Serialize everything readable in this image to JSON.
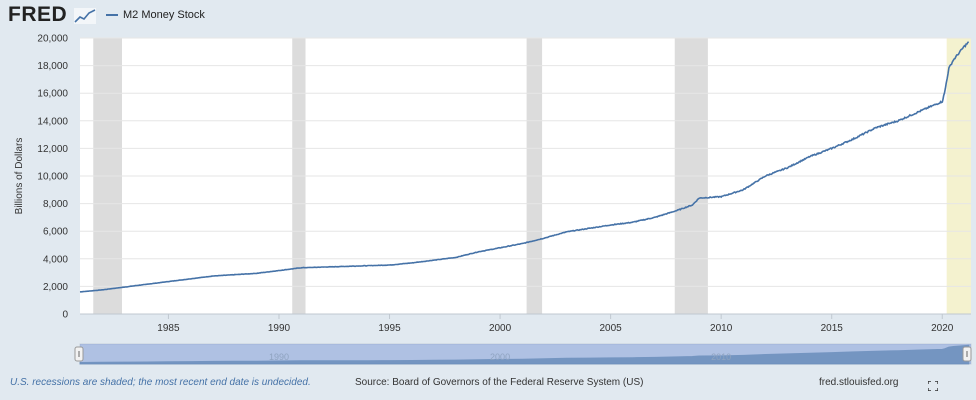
{
  "header": {
    "logo_text": "FRED",
    "logo_icon": "line-chart-icon",
    "legend_label": "M2 Money Stock"
  },
  "footer": {
    "recession_note": "U.S. recessions are shaded; the most recent end date is undecided.",
    "source": "Source: Board of Governors of the Federal Reserve System (US)",
    "url": "fred.stlouisfed.org",
    "fullscreen_icon": "fullscreen-icon"
  },
  "navigator": {
    "tick_labels": [
      "1990",
      "2000",
      "2010"
    ],
    "left_handle_icon": "range-handle-left-icon",
    "right_handle_icon": "range-handle-right-icon"
  },
  "colors": {
    "series": "#4572a7",
    "recession": "#dcdcdc",
    "undecided_recession": "#f4f2cf",
    "background": "#e1e9f0",
    "plot_background": "#ffffff"
  },
  "chart_data": {
    "type": "line",
    "title": "",
    "xlabel": "",
    "ylabel": "Billions of Dollars",
    "xlim": [
      1981.0,
      2021.3
    ],
    "ylim": [
      0,
      20000
    ],
    "x_ticks": [
      1985,
      1990,
      1995,
      2000,
      2005,
      2010,
      2015,
      2020
    ],
    "y_ticks": [
      0,
      2000,
      4000,
      6000,
      8000,
      10000,
      12000,
      14000,
      16000,
      18000,
      20000
    ],
    "y_tick_labels": [
      "0",
      "2,000",
      "4,000",
      "6,000",
      "8,000",
      "10,000",
      "12,000",
      "14,000",
      "16,000",
      "18,000",
      "20,000"
    ],
    "grid": true,
    "legend": "top-left",
    "recessions": [
      {
        "start": 1981.6,
        "end": 1982.9
      },
      {
        "start": 1990.6,
        "end": 1991.2
      },
      {
        "start": 2001.2,
        "end": 2001.9
      },
      {
        "start": 2007.9,
        "end": 2009.4
      },
      {
        "start": 2020.2,
        "end": 2021.3,
        "undecided": true
      }
    ],
    "series": [
      {
        "name": "M2 Money Stock",
        "x": [
          1981.0,
          1982.0,
          1983.0,
          1984.0,
          1985.0,
          1986.0,
          1987.0,
          1988.0,
          1989.0,
          1990.0,
          1991.0,
          1992.0,
          1993.0,
          1994.0,
          1995.0,
          1996.0,
          1997.0,
          1998.0,
          1999.0,
          2000.0,
          2001.0,
          2002.0,
          2003.0,
          2004.0,
          2005.0,
          2006.0,
          2007.0,
          2008.0,
          2008.7,
          2009.0,
          2010.0,
          2011.0,
          2012.0,
          2013.0,
          2014.0,
          2015.0,
          2016.0,
          2017.0,
          2018.0,
          2019.0,
          2020.0,
          2020.1,
          2020.3,
          2020.5,
          2021.0,
          2021.2
        ],
        "values": [
          1600,
          1750,
          1950,
          2150,
          2350,
          2550,
          2750,
          2850,
          2950,
          3150,
          3350,
          3400,
          3450,
          3500,
          3550,
          3700,
          3900,
          4100,
          4500,
          4800,
          5100,
          5500,
          5950,
          6200,
          6450,
          6650,
          7000,
          7500,
          7900,
          8400,
          8500,
          9000,
          10000,
          10600,
          11400,
          12000,
          12700,
          13500,
          14000,
          14700,
          15400,
          16000,
          17800,
          18400,
          19400,
          19700
        ]
      }
    ]
  }
}
